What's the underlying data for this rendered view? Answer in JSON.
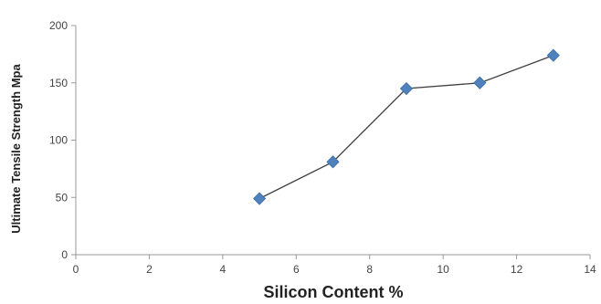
{
  "chart_data": {
    "type": "scatter",
    "xlabel": "Silicon Content %",
    "ylabel": "Ultimate Tensile Strength  Mpa",
    "xlim": [
      0,
      14
    ],
    "ylim": [
      0,
      200
    ],
    "xticks": [
      0,
      2,
      4,
      6,
      8,
      10,
      12,
      14
    ],
    "yticks": [
      0,
      50,
      100,
      150,
      200
    ],
    "grid": false,
    "legend": "none",
    "series": [
      {
        "x": [
          5,
          7,
          9,
          11,
          13
        ],
        "y": [
          49,
          81,
          145,
          150,
          174
        ],
        "marker": "diamond",
        "marker_color": "#4f81bd",
        "line_color": "#404040"
      }
    ]
  }
}
